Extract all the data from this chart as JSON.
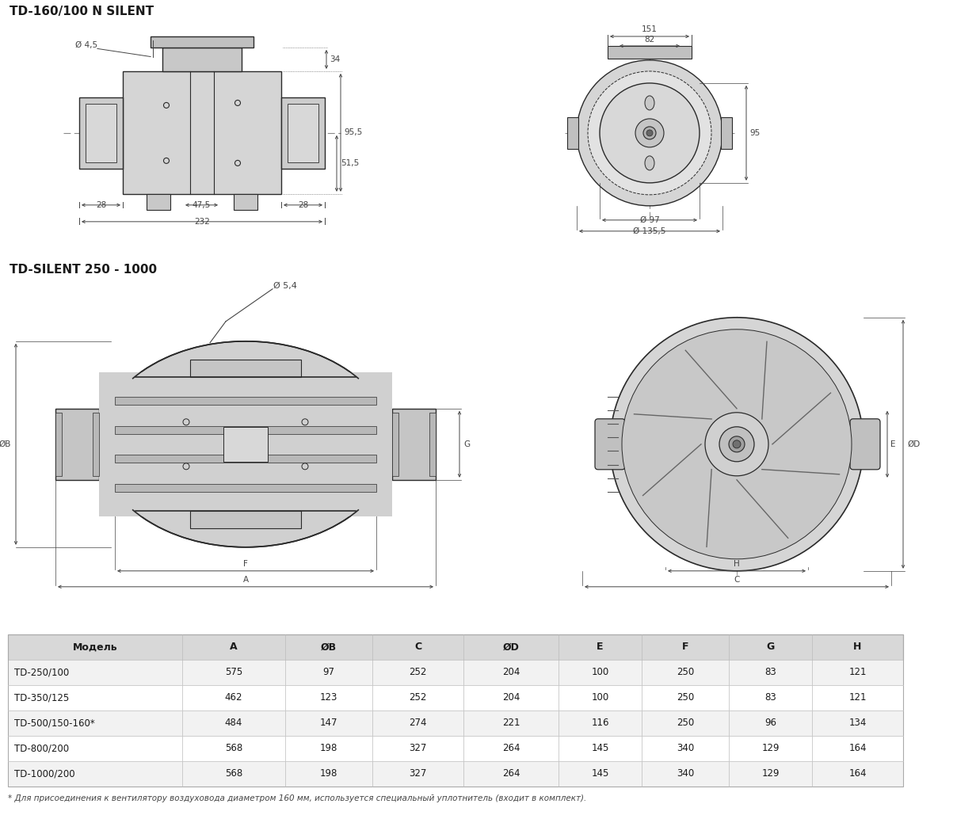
{
  "title1": "TD-160/100 N SILENT",
  "title2": "TD-SILENT 250 - 1000",
  "bg_top": "#e0e0e0",
  "bg_bot": "#e0e0e0",
  "white_bg": "#ffffff",
  "lc": "#2a2a2a",
  "dim_c": "#444444",
  "table_hdr_bg": "#d8d8d8",
  "table_row_alt": "#f8f8f8",
  "text_dark": "#1a1a1a",
  "orange": "#c47000",
  "table_headers": [
    "Модель",
    "A",
    "ØB",
    "C",
    "ØD",
    "E",
    "F",
    "G",
    "H"
  ],
  "table_data": [
    [
      "TD-250/100",
      "575",
      "97",
      "252",
      "204",
      "100",
      "250",
      "83",
      "121"
    ],
    [
      "TD-350/125",
      "462",
      "123",
      "252",
      "204",
      "100",
      "250",
      "83",
      "121"
    ],
    [
      "TD-500/150-160*",
      "484",
      "147",
      "274",
      "221",
      "116",
      "250",
      "96",
      "134"
    ],
    [
      "TD-800/200",
      "568",
      "198",
      "327",
      "264",
      "145",
      "340",
      "129",
      "164"
    ],
    [
      "TD-1000/200",
      "568",
      "198",
      "327",
      "264",
      "145",
      "340",
      "129",
      "164"
    ]
  ],
  "footnote": "* Для присоединения к вентилятору воздуховода диаметром 160 мм, используется специальный уплотнитель (входит в комплект)."
}
